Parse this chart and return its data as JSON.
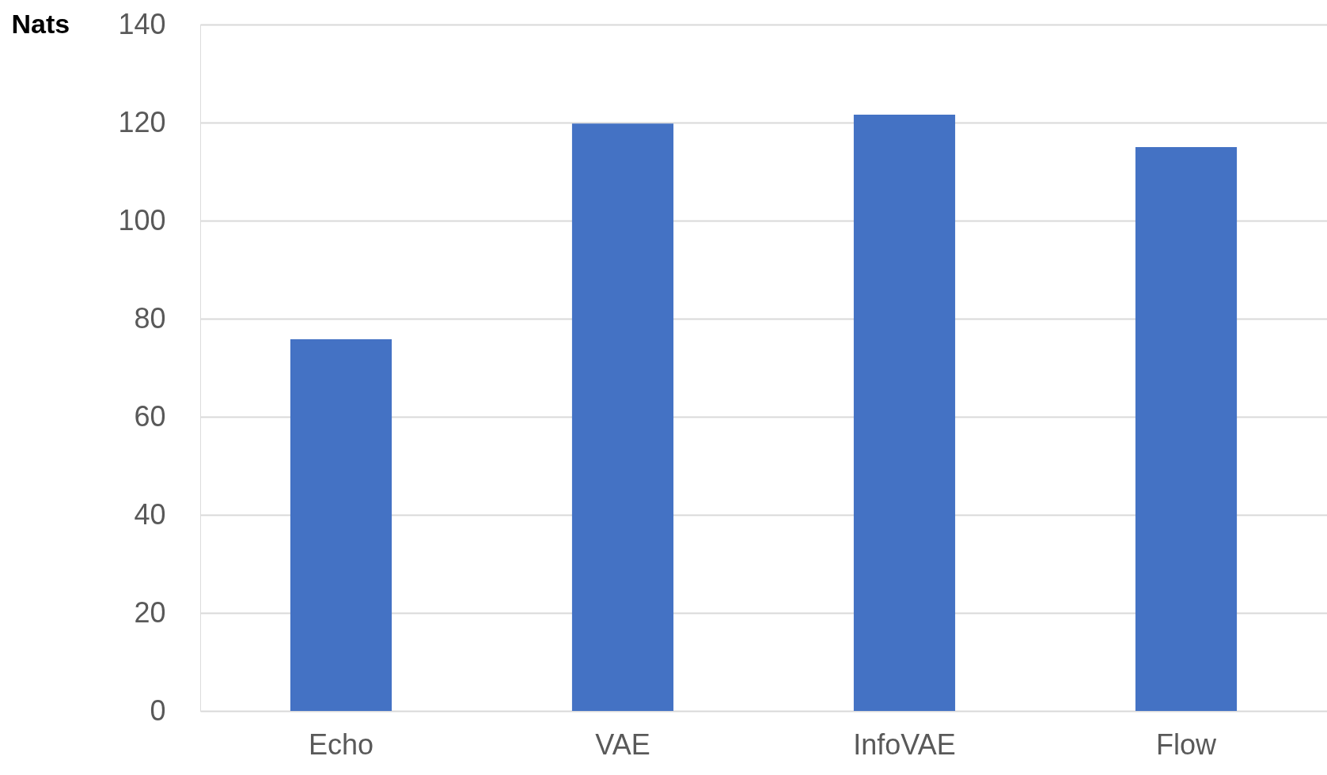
{
  "chart_data": {
    "type": "bar",
    "ylabel": "Nats",
    "categories": [
      "Echo",
      "VAE",
      "InfoVAE",
      "Flow"
    ],
    "values": [
      75.8,
      119.8,
      121.6,
      115.0
    ],
    "color": "#4472c4",
    "ylim": [
      0,
      140
    ],
    "yticks": [
      0,
      20,
      40,
      60,
      80,
      100,
      120,
      140
    ],
    "grid": "y"
  }
}
